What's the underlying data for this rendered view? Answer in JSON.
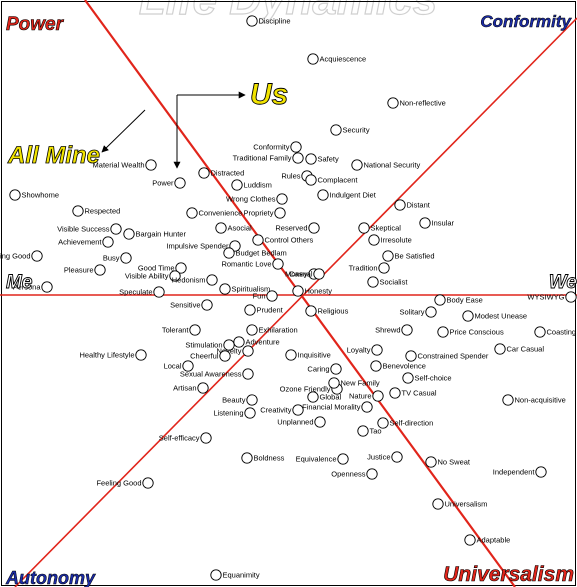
{
  "watermark_title": "Life Dynamics",
  "corners": {
    "power": {
      "text": "Power",
      "color": "#e1251b"
    },
    "conformity": {
      "text": "Conformity",
      "color": "#1b2ba6"
    },
    "autonomy": {
      "text": "Autonomy",
      "color": "#1b2ba6"
    },
    "universalism": {
      "text": "Universalism",
      "color": "#e1251b"
    }
  },
  "side_labels": {
    "me": "Me",
    "we": "We"
  },
  "callouts": {
    "us": {
      "text": "Us",
      "color": "#f2e400"
    },
    "all_mine": {
      "text": "All Mine",
      "color": "#f2e400"
    }
  },
  "line_color": "#e1251b",
  "items": [
    "Discipline",
    "Acquiescence",
    "Non-reflective",
    "Security",
    "Conformity",
    "Traditional Family",
    "Safety",
    "National Security",
    "Material Wealth",
    "Distracted",
    "Rules",
    "Complacent",
    "Power",
    "Luddism",
    "Indulgent Diet",
    "Showhome",
    "Wrong Clothes",
    "Distant",
    "Respected",
    "Convenience",
    "Propriety",
    "Insular",
    "Visible Success",
    "Bargain Hunter",
    "Asocial",
    "Reserved",
    "Skeptical",
    "Achievement",
    "Impulsive Spender",
    "Control Others",
    "Irresolute",
    "Looking Good",
    "Busy",
    "Budget Bedlam",
    "Be Satisfied",
    "Romantic Love",
    "Good Time",
    "Tradition",
    "Pleasure",
    "Visible Ability",
    "Hedonism",
    "Money",
    "Casual",
    "Socialist",
    "Persona",
    "Speculate",
    "Spiritualism",
    "Honesty",
    "Fun",
    "Sensitive",
    "Body Ease",
    "WYSIWYG",
    "Prudent",
    "Religious",
    "Solitary",
    "Modest Unease",
    "Tolerant",
    "Exhilaration",
    "Shrewd",
    "Price Conscious",
    "Coasting",
    "Adventure",
    "Stimulation",
    "Loyalty",
    "Constrained Spender",
    "Novelty",
    "Healthy Lifestyle",
    "Cheerful",
    "Inquisitive",
    "Benevolence",
    "Car Casual",
    "Local",
    "Sexual Awareness",
    "Caring",
    "Self-choice",
    "Ozone Friendly",
    "New Family",
    "Artisan",
    "Nature",
    "TV Casual",
    "Non-acquisitive",
    "Beauty",
    "Global",
    "Financial Morality",
    "Creativity",
    "Listening",
    "Self-direction",
    "Unplanned",
    "Tao",
    "Self-efficacy",
    "Equivalence",
    "Justice",
    "No Sweat",
    "Boldness",
    "Independent",
    "Openness",
    "Feeling Good",
    "Universalism",
    "Adaptable",
    "Equanimity"
  ]
}
